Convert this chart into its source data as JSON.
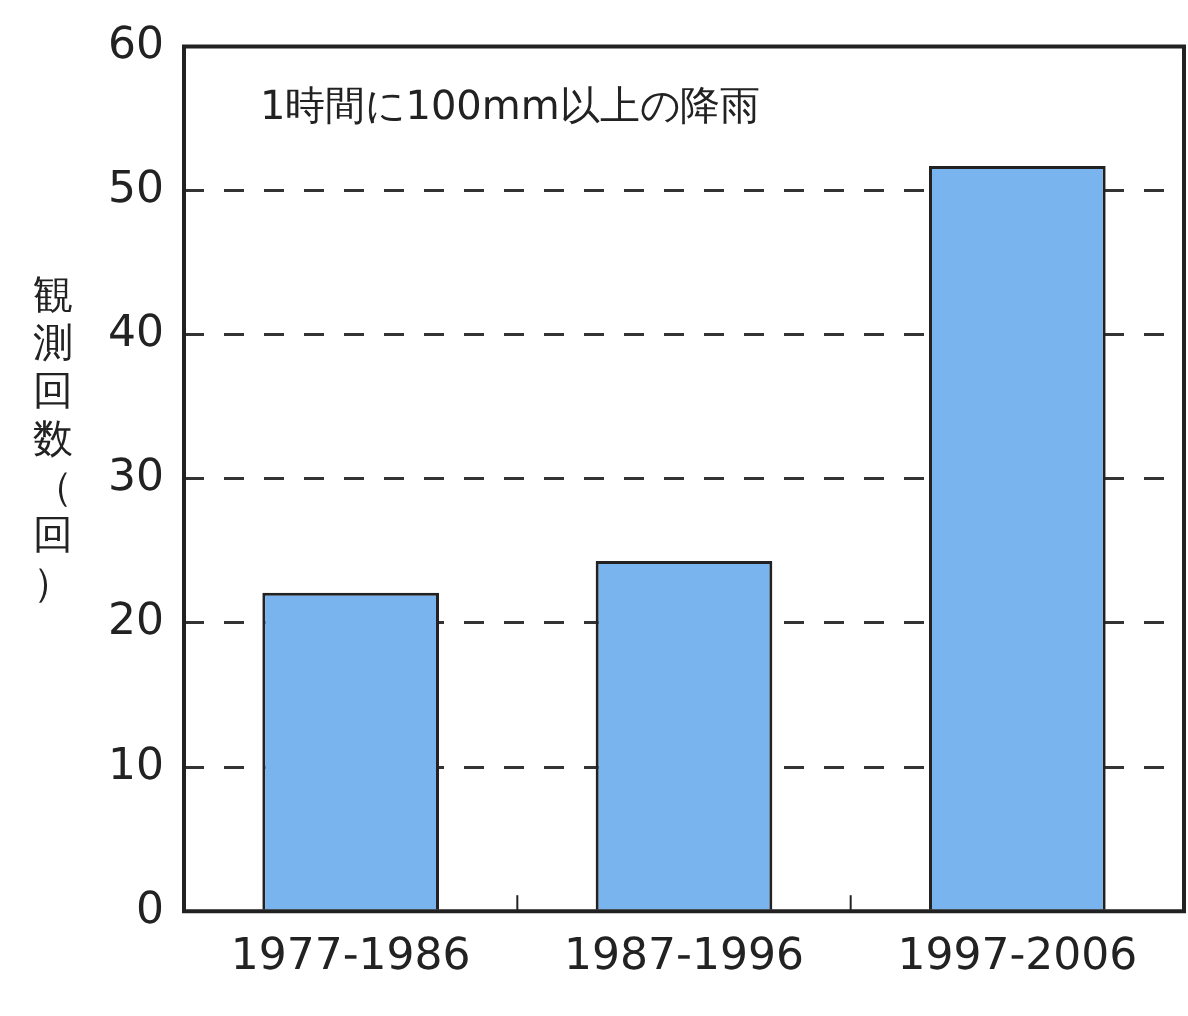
{
  "chart_data": {
    "type": "bar",
    "title": "1時間に100mm以上の降雨",
    "ylabel": "観測回数（回）",
    "categories": [
      "1977-1986",
      "1987-1996",
      "1997-2006"
    ],
    "values": [
      22.1,
      24.3,
      51.7
    ],
    "color": "#7ab4ee",
    "ylim": [
      0,
      60
    ],
    "yticks": [
      0,
      10,
      20,
      30,
      40,
      50,
      60
    ],
    "grid": "y",
    "legend": false
  }
}
